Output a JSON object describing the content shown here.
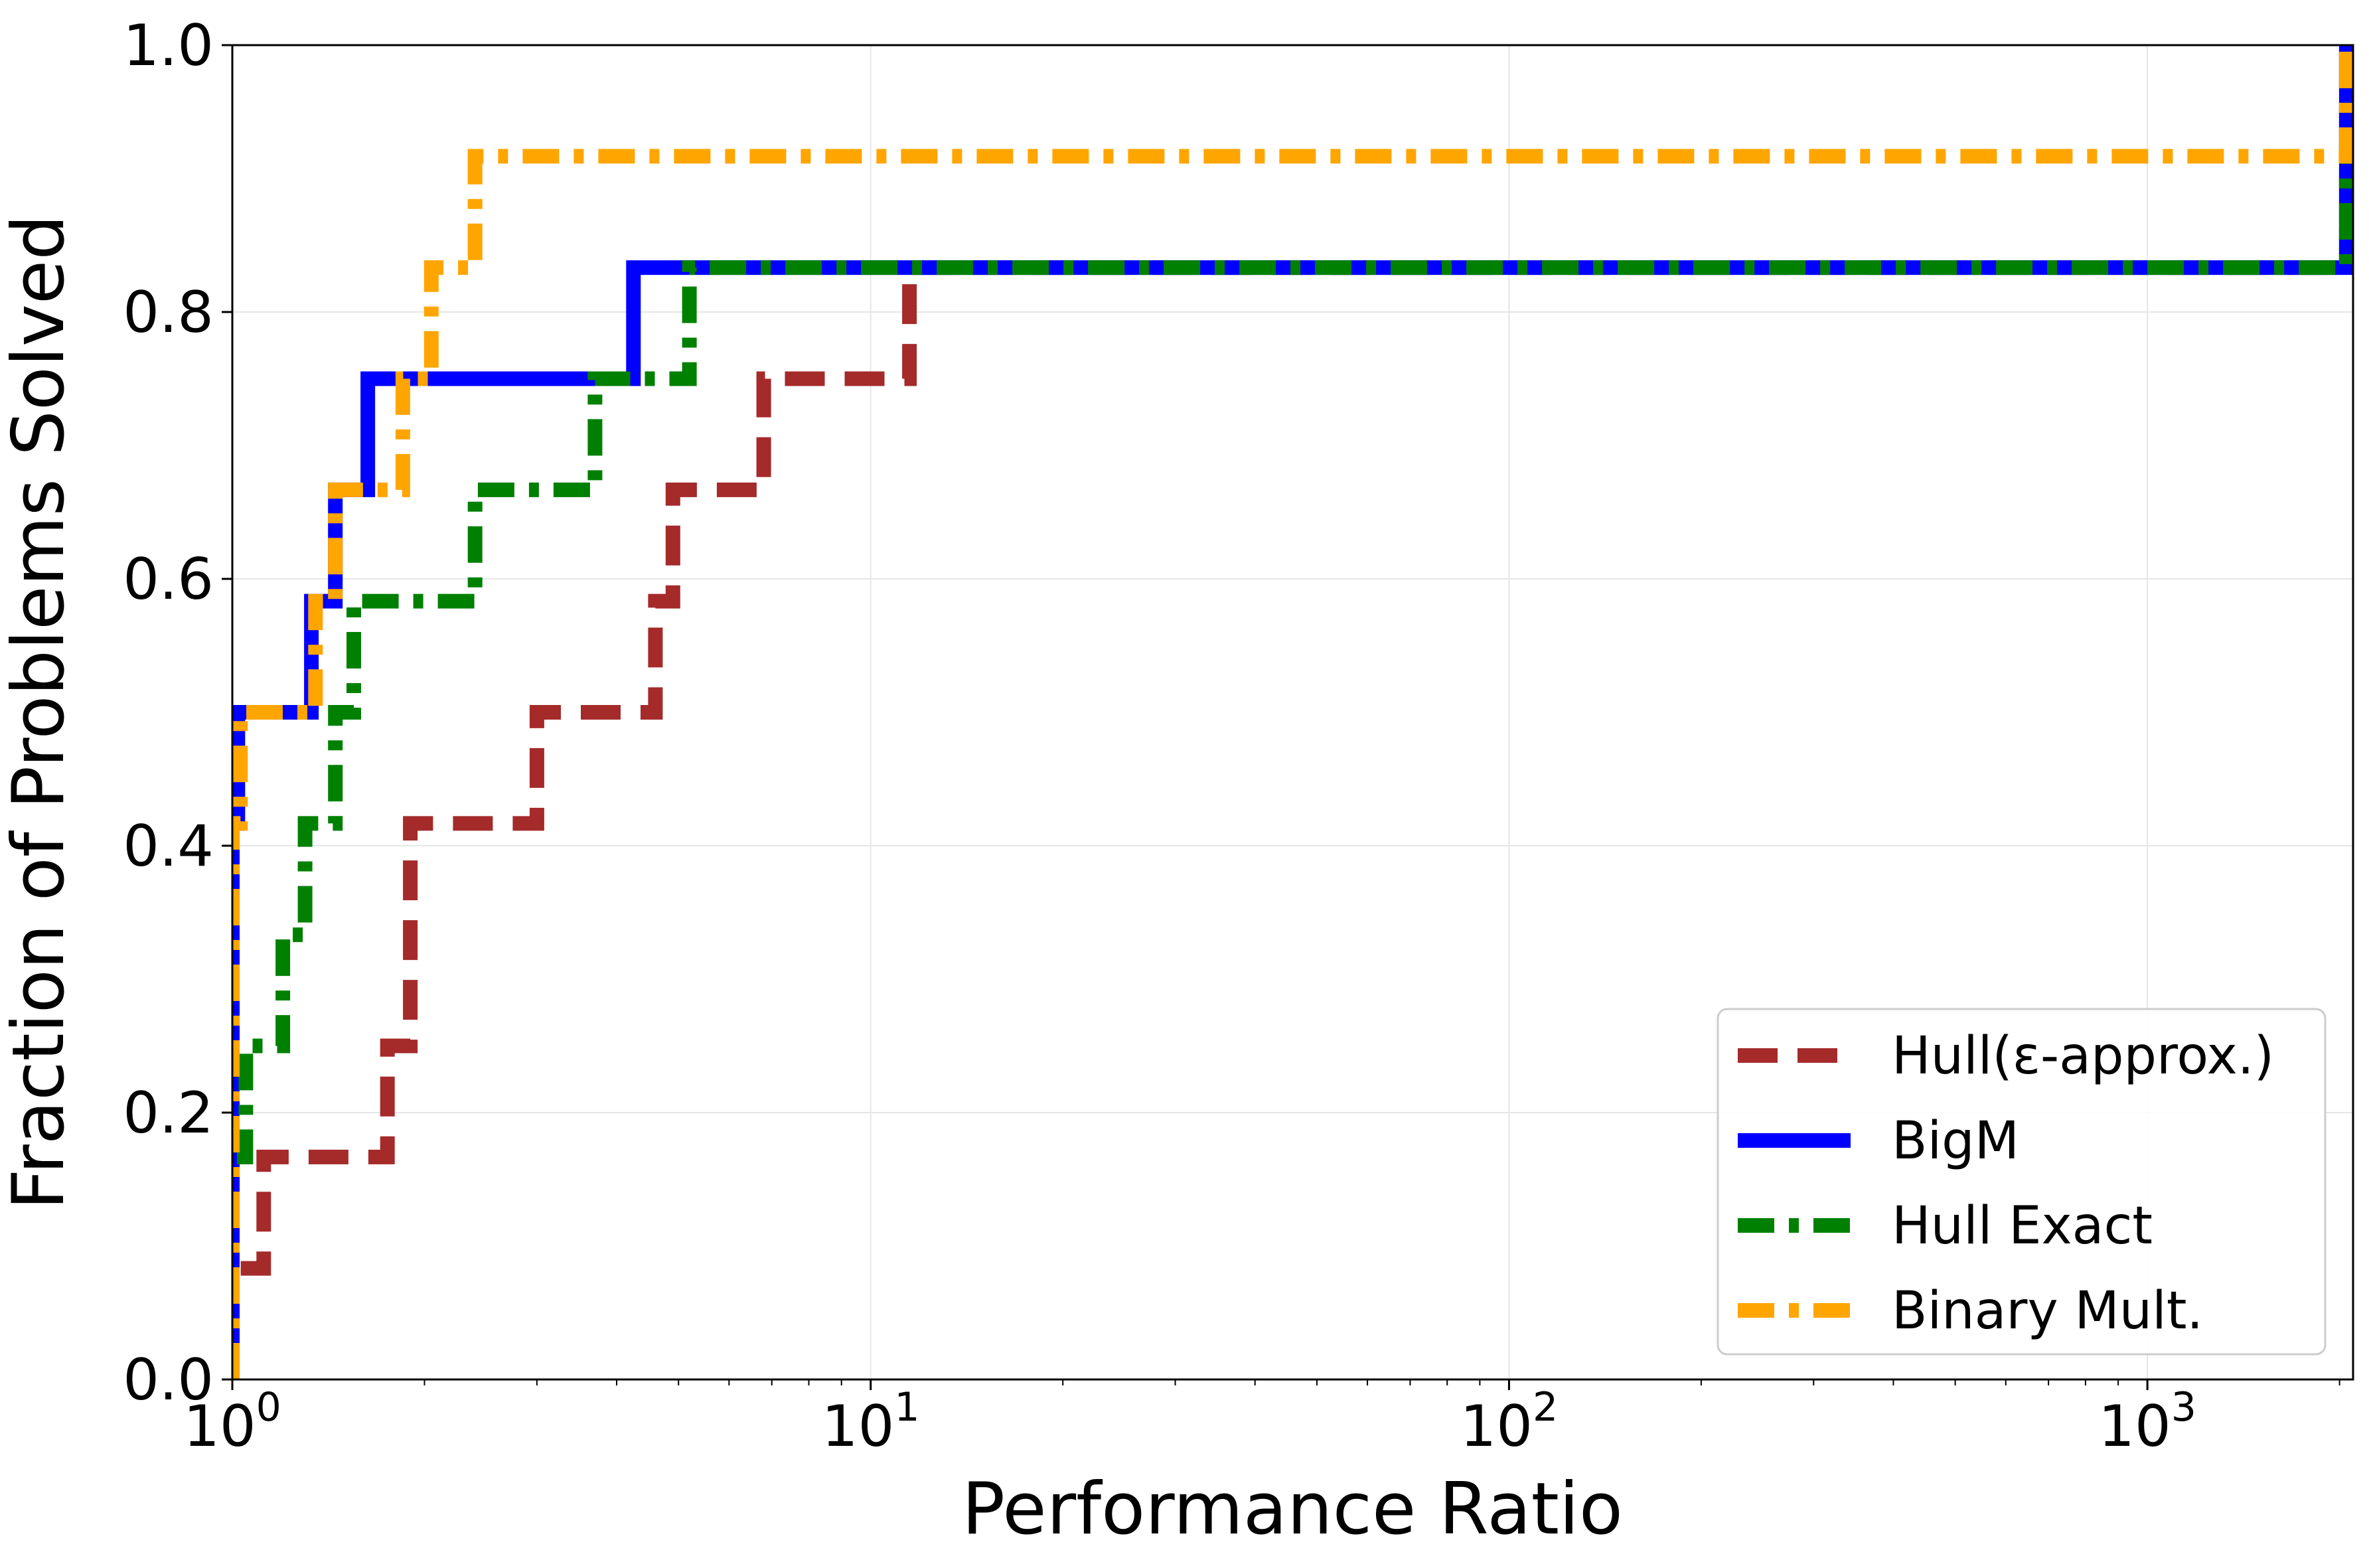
{
  "chart_data": {
    "type": "line",
    "title": "",
    "xlabel": "Performance Ratio",
    "ylabel": "Fraction of Problems Solved",
    "x_scale": "log",
    "xlim": [
      1,
      2100
    ],
    "ylim": [
      0.0,
      1.0
    ],
    "grid": true,
    "legend_position": "lower-right",
    "x_ticks": [
      {
        "value": 1,
        "base": "10",
        "exp": "0"
      },
      {
        "value": 10,
        "base": "10",
        "exp": "1"
      },
      {
        "value": 100,
        "base": "10",
        "exp": "2"
      },
      {
        "value": 1000,
        "base": "10",
        "exp": "3"
      }
    ],
    "y_ticks": [
      {
        "value": 0.0,
        "label": "0.0"
      },
      {
        "value": 0.2,
        "label": "0.2"
      },
      {
        "value": 0.4,
        "label": "0.4"
      },
      {
        "value": 0.6,
        "label": "0.6"
      },
      {
        "value": 0.8,
        "label": "0.8"
      },
      {
        "value": 1.0,
        "label": "1.0"
      }
    ],
    "series": [
      {
        "name": "Hull(ε-approx.)",
        "color": "#a52a2a",
        "style": "dashed",
        "x": [
          1.0,
          1.12,
          1.75,
          1.9,
          3.0,
          4.6,
          4.9,
          6.8,
          11.5,
          2050
        ],
        "y": [
          0.0833,
          0.1667,
          0.25,
          0.4167,
          0.5,
          0.5833,
          0.6667,
          0.75,
          0.8333,
          1.0
        ]
      },
      {
        "name": "BigM",
        "color": "#0000ff",
        "style": "solid",
        "x": [
          1.0,
          1.0,
          1.02,
          1.33,
          1.45,
          1.63,
          4.25,
          2050
        ],
        "y": [
          0.0833,
          0.4167,
          0.5,
          0.5833,
          0.6667,
          0.75,
          0.8333,
          1.0
        ]
      },
      {
        "name": "Hull Exact",
        "color": "#008000",
        "style": "dashdot",
        "x": [
          1.0,
          1.05,
          1.2,
          1.3,
          1.45,
          1.55,
          2.4,
          3.7,
          5.2,
          2050
        ],
        "y": [
          0.1667,
          0.25,
          0.3333,
          0.4167,
          0.5,
          0.5833,
          0.6667,
          0.75,
          0.8333,
          1.0
        ]
      },
      {
        "name": "Binary Mult.",
        "color": "#ffa500",
        "style": "dashdot",
        "x": [
          1.0,
          1.0,
          1.03,
          1.35,
          1.45,
          1.85,
          2.05,
          2.4,
          2050
        ],
        "y": [
          0.0833,
          0.4167,
          0.5,
          0.5833,
          0.6667,
          0.75,
          0.8333,
          0.9167,
          1.0
        ]
      }
    ]
  }
}
